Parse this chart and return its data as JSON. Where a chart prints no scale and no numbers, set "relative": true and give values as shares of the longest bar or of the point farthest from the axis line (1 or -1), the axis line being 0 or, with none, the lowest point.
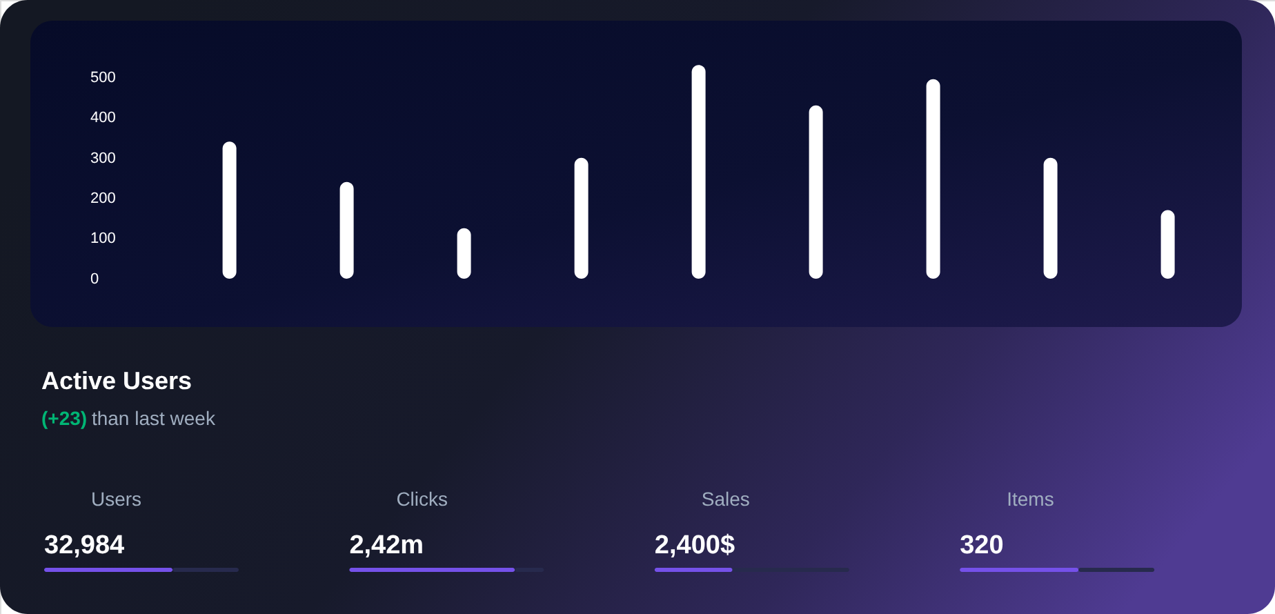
{
  "chart_data": [
    {
      "type": "bar",
      "title": "Active Users",
      "subtitle": "(+23) than last week",
      "categories": [
        null,
        null,
        null,
        null,
        null,
        null,
        null,
        null,
        null
      ],
      "values": [
        340,
        240,
        125,
        300,
        530,
        430,
        495,
        300,
        170
      ],
      "color": "#ffffff",
      "ylim": [
        -120,
        640
      ],
      "yticks": [
        0,
        100,
        200,
        300,
        400,
        500
      ]
    },
    {
      "type": "bar",
      "orientation": "horizontal",
      "stacked": true,
      "relative": true,
      "title": "Users",
      "subtitle": "32,984",
      "categories": [
        null
      ],
      "series": [
        {
          "color": "#7551e9",
          "values": [
            0.66
          ]
        },
        {
          "color": "#272a4d",
          "values": [
            0.34
          ]
        }
      ]
    },
    {
      "type": "bar",
      "orientation": "horizontal",
      "stacked": true,
      "relative": true,
      "title": "Clicks",
      "subtitle": "2,42m",
      "categories": [
        null
      ],
      "series": [
        {
          "color": "#7551e9",
          "values": [
            0.85
          ]
        },
        {
          "color": "#272a4d",
          "values": [
            0.15
          ]
        }
      ]
    },
    {
      "type": "bar",
      "orientation": "horizontal",
      "stacked": true,
      "relative": true,
      "title": "Sales",
      "subtitle": "2,400$",
      "categories": [
        null
      ],
      "series": [
        {
          "color": "#7551e9",
          "values": [
            0.4
          ]
        },
        {
          "color": "#272a4d",
          "values": [
            0.6
          ]
        }
      ]
    },
    {
      "type": "bar",
      "orientation": "horizontal",
      "stacked": true,
      "relative": true,
      "title": "Items",
      "subtitle": "320",
      "categories": [
        null
      ],
      "series": [
        {
          "color": "#7551e9",
          "values": [
            0.61
          ]
        },
        {
          "color": "#272a4d",
          "values": [
            0.39
          ]
        }
      ]
    }
  ]
}
